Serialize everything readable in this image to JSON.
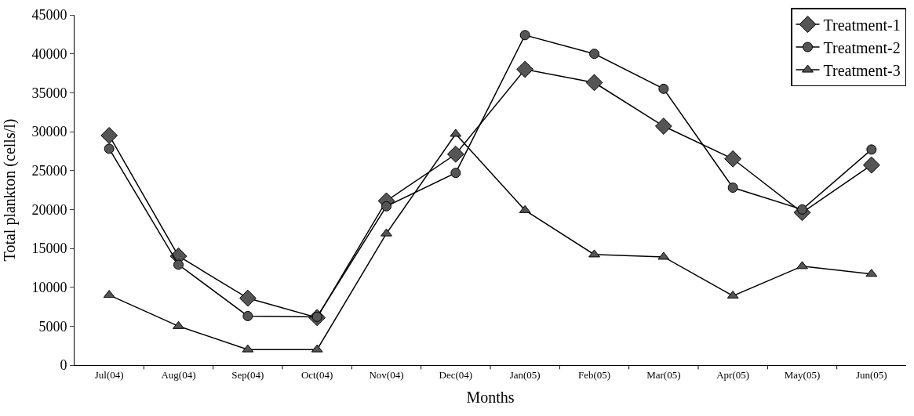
{
  "chart_data": {
    "type": "line",
    "xlabel": "Months",
    "ylabel": "Total plankton (cells/l)",
    "categories": [
      "Jul(04)",
      "Aug(04)",
      "Sep(04)",
      "Oct(04)",
      "Nov(04)",
      "Dec(04)",
      "Jan(05)",
      "Feb(05)",
      "Mar(05)",
      "Apr(05)",
      "May(05)",
      "Jun(05)"
    ],
    "series": [
      {
        "name": "Treatment-1",
        "color": "#555555",
        "marker": "diamond",
        "values": [
          29500,
          14000,
          8600,
          6100,
          21100,
          27100,
          38000,
          36300,
          30700,
          26500,
          19600,
          25700
        ]
      },
      {
        "name": "Treatment-2",
        "color": "#555555",
        "marker": "circle",
        "values": [
          27800,
          12900,
          6300,
          6200,
          20400,
          24700,
          42400,
          40000,
          35500,
          22800,
          20000,
          27700
        ]
      },
      {
        "name": "Treatment-3",
        "color": "#555555",
        "marker": "triangle",
        "values": [
          9000,
          5000,
          2000,
          2000,
          16900,
          29700,
          19900,
          14200,
          13900,
          8900,
          12700,
          11700
        ]
      }
    ],
    "ylim": [
      0,
      45000
    ],
    "yticks": [
      0,
      5000,
      10000,
      15000,
      20000,
      25000,
      30000,
      35000,
      40000,
      45000
    ],
    "legend": "top right",
    "line_style": "solid"
  }
}
